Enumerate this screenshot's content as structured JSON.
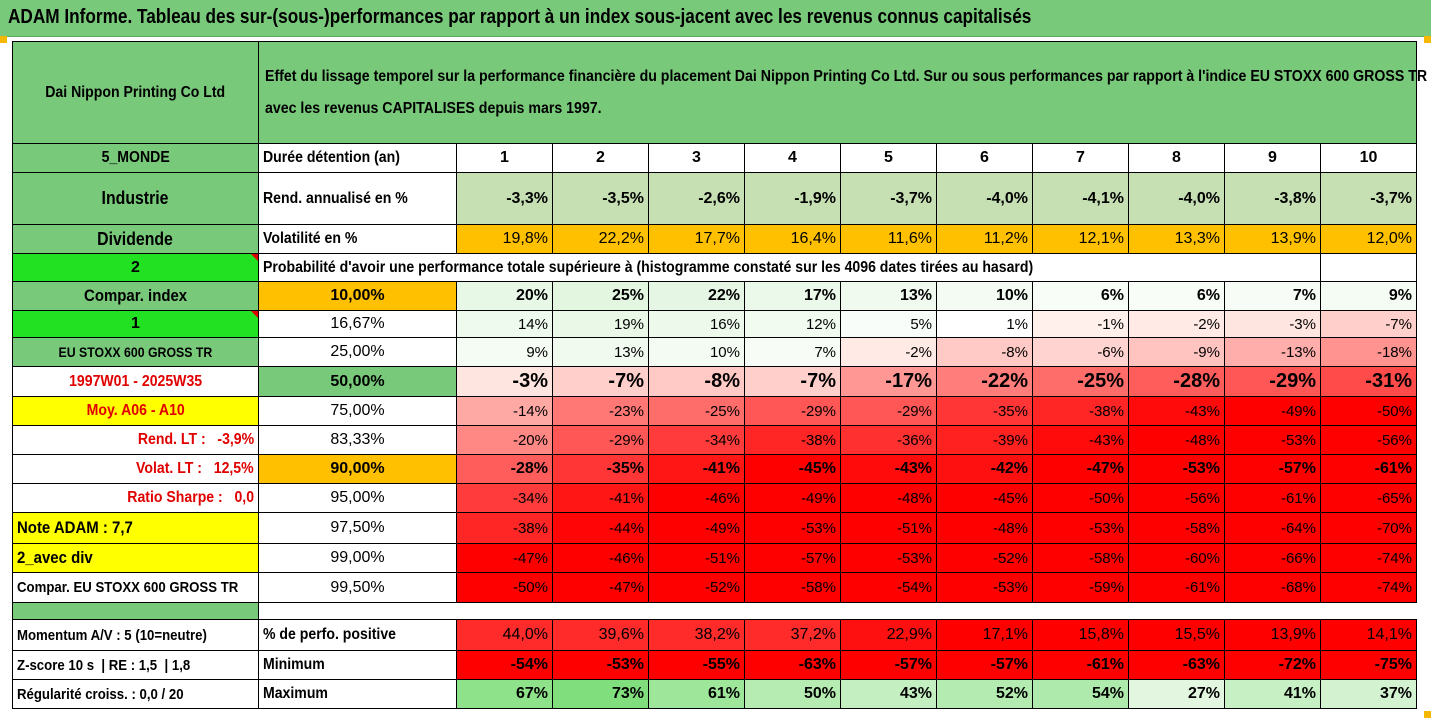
{
  "title": "ADAM Informe. Tableau des sur-(sous-)performances par rapport à un index sous-jacent avec les revenus connus capitalisés",
  "header": {
    "company": "Dai Nippon Printing Co Ltd",
    "description": "Effet du lissage temporel sur la performance financière du placement Dai Nippon Printing Co Ltd. Sur ou sous performances par rapport à l'indice EU STOXX 600 GROSS TR avec les revenus CAPITALISES depuis mars 1997."
  },
  "left_labels": {
    "region": "5_MONDE",
    "sector": "Industrie",
    "dividend": "Dividende",
    "two": "2",
    "compar_index": "Compar. index",
    "one": "1",
    "index_name": "EU STOXX 600 GROSS TR",
    "period": "1997W01 - 2025W35",
    "moy": "Moy. A06 - A10",
    "rend_lt": "Rend. LT :   -3,9%",
    "volat_lt": "Volat. LT :   12,5%",
    "sharpe": "Ratio Sharpe :   0,0",
    "note": "Note ADAM : 7,7",
    "avec_div": "2_avec div",
    "compar_full": "Compar. EU STOXX 600 GROSS TR"
  },
  "durations": {
    "label": "Durée détention (an)",
    "values": [
      "1",
      "2",
      "3",
      "4",
      "5",
      "6",
      "7",
      "8",
      "9",
      "10"
    ]
  },
  "rend": {
    "label": "Rend. annualisé en %",
    "values": [
      "-3,3%",
      "-3,5%",
      "-2,6%",
      "-1,9%",
      "-3,7%",
      "-4,0%",
      "-4,1%",
      "-4,0%",
      "-3,8%",
      "-3,7%"
    ]
  },
  "volat": {
    "label": "Volatilité en %",
    "values": [
      "19,8%",
      "22,2%",
      "17,7%",
      "16,4%",
      "11,6%",
      "11,2%",
      "12,1%",
      "13,3%",
      "13,9%",
      "12,0%"
    ]
  },
  "probability_caption": "Probabilité d'avoir une performance totale supérieure à (histogramme constaté sur les 4096 dates tirées au hasard)",
  "prob_rows": [
    {
      "p": "10,00%",
      "values": [
        "20%",
        "25%",
        "22%",
        "17%",
        "13%",
        "10%",
        "6%",
        "6%",
        "7%",
        "9%"
      ]
    },
    {
      "p": "16,67%",
      "values": [
        "14%",
        "19%",
        "16%",
        "12%",
        "5%",
        "1%",
        "-1%",
        "-2%",
        "-3%",
        "-7%"
      ]
    },
    {
      "p": "25,00%",
      "values": [
        "9%",
        "13%",
        "10%",
        "7%",
        "-2%",
        "-8%",
        "-6%",
        "-9%",
        "-13%",
        "-18%"
      ]
    },
    {
      "p": "50,00%",
      "values": [
        "-3%",
        "-7%",
        "-8%",
        "-7%",
        "-17%",
        "-22%",
        "-25%",
        "-28%",
        "-29%",
        "-31%"
      ]
    },
    {
      "p": "75,00%",
      "values": [
        "-14%",
        "-23%",
        "-25%",
        "-29%",
        "-29%",
        "-35%",
        "-38%",
        "-43%",
        "-49%",
        "-50%"
      ]
    },
    {
      "p": "83,33%",
      "values": [
        "-20%",
        "-29%",
        "-34%",
        "-38%",
        "-36%",
        "-39%",
        "-43%",
        "-48%",
        "-53%",
        "-56%"
      ]
    },
    {
      "p": "90,00%",
      "values": [
        "-28%",
        "-35%",
        "-41%",
        "-45%",
        "-43%",
        "-42%",
        "-47%",
        "-53%",
        "-57%",
        "-61%"
      ]
    },
    {
      "p": "95,00%",
      "values": [
        "-34%",
        "-41%",
        "-46%",
        "-49%",
        "-48%",
        "-45%",
        "-50%",
        "-56%",
        "-61%",
        "-65%"
      ]
    },
    {
      "p": "97,50%",
      "values": [
        "-38%",
        "-44%",
        "-49%",
        "-53%",
        "-51%",
        "-48%",
        "-53%",
        "-58%",
        "-64%",
        "-70%"
      ]
    },
    {
      "p": "99,00%",
      "values": [
        "-47%",
        "-46%",
        "-51%",
        "-57%",
        "-53%",
        "-52%",
        "-58%",
        "-60%",
        "-66%",
        "-74%"
      ]
    },
    {
      "p": "99,50%",
      "values": [
        "-50%",
        "-47%",
        "-52%",
        "-58%",
        "-54%",
        "-53%",
        "-59%",
        "-61%",
        "-68%",
        "-74%"
      ]
    }
  ],
  "bottom": {
    "momentum": {
      "left": "Momentum A/V : 5 (10=neutre)",
      "label": "% de perfo. positive",
      "values": [
        "44,0%",
        "39,6%",
        "38,2%",
        "37,2%",
        "22,9%",
        "17,1%",
        "15,8%",
        "15,5%",
        "13,9%",
        "14,1%"
      ]
    },
    "zscore": {
      "left": "Z-score 10 s  | RE : 1,5  | 1,8",
      "label": "Minimum",
      "values": [
        "-54%",
        "-53%",
        "-55%",
        "-63%",
        "-57%",
        "-57%",
        "-61%",
        "-63%",
        "-72%",
        "-75%"
      ]
    },
    "regularite": {
      "left": "Régularité croiss. : 0,0 / 20",
      "label": "Maximum",
      "values": [
        "67%",
        "73%",
        "61%",
        "50%",
        "43%",
        "52%",
        "54%",
        "27%",
        "41%",
        "37%"
      ]
    }
  },
  "colors": {
    "header_green": "#79c97b",
    "lime": "#22e022",
    "yellow": "#ffff00",
    "orange": "#ffc000",
    "light_green": "#c6e0b4",
    "red": "#ff0000"
  }
}
